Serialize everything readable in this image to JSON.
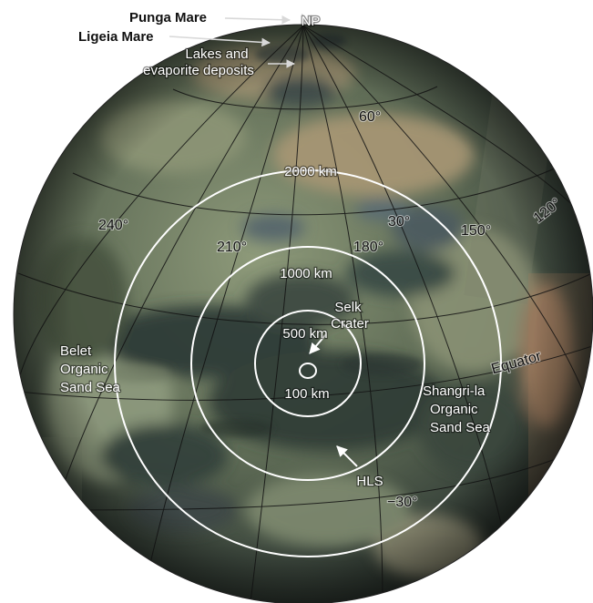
{
  "labels": {
    "punga_mare": "Punga Mare",
    "ligeia_mare": "Ligeia Mare",
    "lakes_line1": "Lakes and",
    "lakes_line2": "evaporite deposits",
    "north_pole": "NP",
    "lat_60": "60°",
    "lon_240": "240°",
    "lon_210": "210°",
    "lon_180": "180°",
    "lon_30": "30°",
    "lon_150": "150°",
    "lon_120": "120°",
    "lat_minus30": "−30°",
    "equator": "Equator",
    "belet_1": "Belet",
    "belet_2": "Organic",
    "belet_3": "Sand Sea",
    "shangri_1": "Shangri-la",
    "shangri_2": "Organic",
    "shangri_3": "Sand Sea",
    "selk_1": "Selk",
    "selk_2": "Crater",
    "hls": "HLS",
    "ring_2000": "2000 km",
    "ring_1000": "1000 km",
    "ring_500": "500 km",
    "ring_100": "100 km"
  },
  "colors": {
    "globe_base": "#5c6b55",
    "globe_light": "#93a079",
    "globe_dark": "#2f3a33",
    "ocean_dark": "#253036",
    "tan": "#b19470",
    "grid": "#111111",
    "rings": "#ffffff"
  }
}
